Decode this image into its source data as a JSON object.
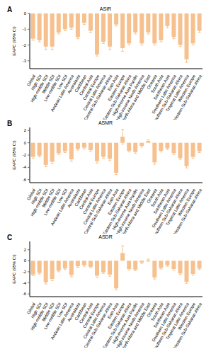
{
  "chart_data": [
    {
      "type": "bar",
      "panel": "A",
      "title": "ASIR",
      "y_label": "EAPC (95% CI)",
      "color": "#f6c18e",
      "categories": [
        "Global",
        "High SDI",
        "High-middle SDI",
        "Middle SDI",
        "Low-middle SDI",
        "Low SDI",
        "Andean Latin America",
        "Australasia",
        "Caribbean",
        "Central Asia",
        "Central Europe",
        "Central Latin America",
        "Central Sub-Saharan Africa",
        "East Asia",
        "Eastern Europe",
        "Eastern Sub-Saharan Africa",
        "High-income Asia Pacific",
        "High-income North America",
        "North Africa and Middle East",
        "Oceania",
        "South Asia",
        "Southeast Asia",
        "Southern Latin America",
        "Southern Sub-Saharan Africa",
        "Tropical Latin America",
        "Western Europe",
        "Western Sub-Saharan Africa"
      ],
      "values": [
        -1.6,
        -1.7,
        -2.1,
        -2.1,
        -1.2,
        -1.0,
        -0.9,
        -1.5,
        -0.6,
        -1.1,
        -2.6,
        -1.8,
        -2.1,
        -0.7,
        -2.2,
        -1.9,
        -1.2,
        -1.9,
        -1.2,
        -1.9,
        -1.7,
        -0.8,
        -1.5,
        -2.0,
        -2.9,
        -1.9,
        -1.1
      ],
      "errors": [
        0.1,
        0.1,
        0.2,
        0.2,
        0.1,
        0.1,
        0.1,
        0.1,
        0.1,
        0.1,
        0.1,
        0.1,
        0.2,
        0.1,
        0.2,
        0.1,
        0.1,
        0.1,
        0.1,
        0.1,
        0.1,
        0.1,
        0.1,
        0.1,
        0.2,
        0.1,
        0.1
      ],
      "ylim": [
        -3.5,
        0
      ],
      "yticks": [
        0,
        -1,
        -2,
        -3
      ]
    },
    {
      "type": "bar",
      "panel": "B",
      "title": "ASMR",
      "y_label": "EAPC (95% CI)",
      "color": "#f6c18e",
      "categories": [
        "Global",
        "High SDI",
        "High-middle SDI",
        "Middle SDI",
        "Low-middle SDI",
        "Low SDI",
        "Andean Latin America",
        "Australasia",
        "Caribbean",
        "Central Asia",
        "Central Europe",
        "Central Latin America",
        "Central Sub-Saharan Africa",
        "East Asia",
        "Eastern Europe",
        "Eastern Sub-Saharan Africa",
        "High-income Asia Pacific",
        "High-income North America",
        "North Africa and Middle East",
        "Oceania",
        "South Asia",
        "Southeast Asia",
        "Southern Latin America",
        "Southern Sub-Saharan Africa",
        "Tropical Latin America",
        "Western Europe",
        "Western Sub-Saharan Africa"
      ],
      "values": [
        -2.3,
        -2.1,
        -3.6,
        -3.1,
        -1.7,
        -1.4,
        -2.7,
        -1.0,
        -0.8,
        -1.2,
        -3.0,
        -2.3,
        -2.6,
        -4.9,
        1.0,
        -1.3,
        -1.5,
        -0.5,
        0.3,
        -3.2,
        -1.3,
        -0.9,
        -1.7,
        -2.5,
        -3.8,
        -2.3,
        -1.4
      ],
      "errors": [
        0.2,
        0.2,
        0.3,
        0.3,
        0.2,
        0.2,
        0.3,
        0.2,
        0.2,
        0.2,
        0.3,
        0.2,
        0.3,
        0.3,
        1.2,
        0.2,
        0.2,
        0.2,
        0.2,
        0.3,
        0.2,
        0.2,
        0.2,
        0.2,
        0.3,
        0.2,
        0.2
      ],
      "ylim": [
        -6.5,
        2.5
      ],
      "yticks": [
        2,
        0,
        -2,
        -4,
        -6
      ]
    },
    {
      "type": "bar",
      "panel": "C",
      "title": "ASDR",
      "y_label": "EAPC (95% CI)",
      "color": "#f6c18e",
      "categories": [
        "Global",
        "High SDI",
        "High-middle SDI",
        "Middle SDI",
        "Low-middle SDI",
        "Low SDI",
        "Andean Latin America",
        "Australasia",
        "Caribbean",
        "Central Asia",
        "Central Europe",
        "Central Latin America",
        "Central Sub-Saharan Africa",
        "East Asia",
        "Eastern Europe",
        "Eastern Sub-Saharan Africa",
        "High-income Asia Pacific",
        "High-income North America",
        "North Africa and Middle East",
        "Oceania",
        "South Asia",
        "Southeast Asia",
        "Southern Latin America",
        "Southern Sub-Saharan Africa",
        "Tropical Latin America",
        "Western Europe",
        "Western Sub-Saharan Africa"
      ],
      "values": [
        -2.5,
        -2.2,
        -3.9,
        -3.3,
        -1.8,
        -1.4,
        -2.6,
        -1.0,
        -0.8,
        -1.1,
        -2.7,
        -2.1,
        -2.5,
        -5.0,
        1.4,
        -1.5,
        -1.6,
        -0.3,
        0.1,
        -3.0,
        -1.3,
        -0.8,
        -1.5,
        -2.3,
        -3.8,
        -2.4,
        -1.4
      ],
      "errors": [
        0.2,
        0.2,
        0.3,
        0.3,
        0.2,
        0.2,
        0.3,
        0.2,
        0.2,
        0.2,
        0.3,
        0.2,
        0.3,
        0.3,
        1.3,
        0.2,
        0.2,
        0.2,
        0.2,
        0.3,
        0.2,
        0.2,
        0.2,
        0.2,
        0.3,
        0.2,
        0.2
      ],
      "ylim": [
        -6.5,
        3.5
      ],
      "yticks": [
        2,
        0,
        -2,
        -4,
        -6
      ]
    }
  ]
}
